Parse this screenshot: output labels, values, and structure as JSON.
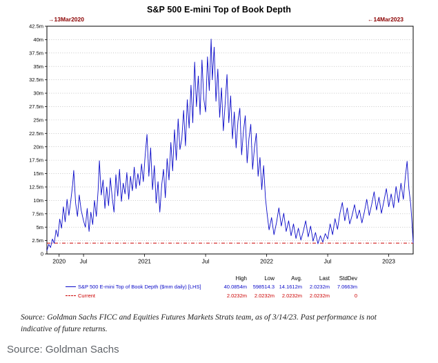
{
  "title": "S&P 500 E-mini Top of Book Depth",
  "annotations": {
    "start_arrow": "→",
    "start_date": "13Mar2020",
    "end_arrow": "←",
    "end_date": "14Mar2023"
  },
  "colors": {
    "series": "#0a0ac8",
    "current": "#cc0000",
    "annotation": "#8b0000"
  },
  "chart_data": {
    "type": "line",
    "title": "S&P 500 E-mini Top of Book Depth",
    "x_range": [
      2020.2,
      2023.2
    ],
    "ylim": [
      0,
      42.5
    ],
    "y_tick_step": 2.5,
    "y_tick_labels": [
      "0",
      "2.5m",
      "5m",
      "7.5m",
      "10m",
      "12.5m",
      "15m",
      "17.5m",
      "20m",
      "22.5m",
      "25m",
      "27.5m",
      "30m",
      "32.5m",
      "35m",
      "37.5m",
      "40m",
      "42.5m"
    ],
    "x_ticks": [
      {
        "v": 2020.3,
        "label": "2020"
      },
      {
        "v": 2020.5,
        "label": "Jul"
      },
      {
        "v": 2021.0,
        "label": "2021"
      },
      {
        "v": 2021.5,
        "label": "Jul"
      },
      {
        "v": 2022.0,
        "label": "2022"
      },
      {
        "v": 2022.5,
        "label": "Jul"
      },
      {
        "v": 2023.0,
        "label": "2023"
      }
    ],
    "grid": "horizontal-dotted",
    "legend_position": "bottom",
    "series": [
      {
        "name": "S&P 500 E-mini Top of Book Depth ($mm daily) [LHS]",
        "color": "#0a0ac8",
        "style": "solid",
        "x": [
          2020.2,
          2020.215,
          2020.23,
          2020.245,
          2020.26,
          2020.275,
          2020.29,
          2020.305,
          2020.32,
          2020.335,
          2020.35,
          2020.365,
          2020.38,
          2020.395,
          2020.41,
          2020.42,
          2020.435,
          2020.45,
          2020.465,
          2020.48,
          2020.5,
          2020.515,
          2020.53,
          2020.545,
          2020.56,
          2020.575,
          2020.59,
          2020.605,
          2020.62,
          2020.63,
          2020.645,
          2020.66,
          2020.675,
          2020.69,
          2020.705,
          2020.72,
          2020.735,
          2020.75,
          2020.765,
          2020.78,
          2020.795,
          2020.81,
          2020.825,
          2020.84,
          2020.855,
          2020.87,
          2020.885,
          2020.9,
          2020.915,
          2020.93,
          2020.945,
          2020.96,
          2020.975,
          2020.99,
          2021.005,
          2021.02,
          2021.035,
          2021.05,
          2021.065,
          2021.08,
          2021.095,
          2021.11,
          2021.125,
          2021.14,
          2021.155,
          2021.17,
          2021.185,
          2021.2,
          2021.215,
          2021.23,
          2021.245,
          2021.26,
          2021.275,
          2021.29,
          2021.305,
          2021.32,
          2021.335,
          2021.35,
          2021.365,
          2021.38,
          2021.395,
          2021.41,
          2021.425,
          2021.44,
          2021.455,
          2021.47,
          2021.485,
          2021.5,
          2021.515,
          2021.53,
          2021.545,
          2021.555,
          2021.57,
          2021.585,
          2021.6,
          2021.615,
          2021.63,
          2021.645,
          2021.66,
          2021.675,
          2021.69,
          2021.705,
          2021.72,
          2021.735,
          2021.75,
          2021.765,
          2021.78,
          2021.795,
          2021.81,
          2021.825,
          2021.84,
          2021.855,
          2021.87,
          2021.885,
          2021.9,
          2021.915,
          2021.93,
          2021.945,
          2021.96,
          2021.975,
          2021.99,
          2022.005,
          2022.02,
          2022.04,
          2022.06,
          2022.08,
          2022.1,
          2022.12,
          2022.14,
          2022.16,
          2022.18,
          2022.2,
          2022.22,
          2022.24,
          2022.26,
          2022.28,
          2022.3,
          2022.32,
          2022.34,
          2022.36,
          2022.38,
          2022.4,
          2022.42,
          2022.44,
          2022.46,
          2022.48,
          2022.5,
          2022.52,
          2022.54,
          2022.56,
          2022.58,
          2022.6,
          2022.62,
          2022.64,
          2022.66,
          2022.68,
          2022.7,
          2022.72,
          2022.74,
          2022.76,
          2022.78,
          2022.8,
          2022.82,
          2022.84,
          2022.86,
          2022.88,
          2022.9,
          2022.92,
          2022.94,
          2022.96,
          2022.98,
          2023.0,
          2023.02,
          2023.04,
          2023.06,
          2023.08,
          2023.1,
          2023.12,
          2023.135,
          2023.15,
          2023.165,
          2023.18,
          2023.19,
          2023.2
        ],
        "y": [
          0.6,
          1.8,
          1.2,
          2.8,
          2.0,
          4.5,
          3.2,
          6.5,
          4.8,
          8.8,
          6.0,
          10.2,
          7.2,
          9.8,
          12.8,
          15.6,
          9.5,
          7.0,
          11.0,
          8.2,
          6.2,
          5.0,
          8.5,
          4.2,
          7.8,
          5.5,
          10.0,
          7.0,
          12.0,
          17.4,
          11.0,
          13.8,
          8.5,
          12.5,
          9.0,
          14.2,
          10.5,
          7.8,
          14.8,
          10.8,
          15.8,
          9.8,
          13.2,
          11.2,
          15.2,
          10.2,
          14.5,
          11.8,
          16.2,
          12.2,
          15.0,
          12.8,
          16.8,
          13.5,
          18.5,
          22.3,
          14.5,
          19.8,
          12.0,
          16.5,
          9.5,
          13.5,
          7.8,
          12.8,
          15.8,
          10.5,
          17.8,
          13.8,
          20.8,
          15.5,
          23.2,
          17.5,
          25.2,
          19.5,
          21.5,
          26.8,
          20.2,
          28.8,
          23.5,
          31.5,
          24.5,
          35.8,
          27.5,
          33.2,
          26.0,
          36.2,
          29.0,
          26.5,
          36.8,
          30.5,
          40.1,
          32.5,
          38.6,
          28.5,
          34.5,
          25.5,
          31.0,
          23.0,
          28.0,
          33.5,
          24.5,
          29.5,
          21.5,
          26.5,
          19.8,
          24.8,
          27.2,
          18.5,
          23.0,
          25.8,
          17.0,
          21.5,
          24.2,
          15.8,
          19.8,
          22.5,
          14.5,
          18.0,
          12.0,
          16.5,
          10.5,
          7.2,
          4.5,
          6.8,
          3.6,
          5.8,
          8.6,
          5.2,
          7.6,
          4.2,
          6.2,
          3.4,
          5.6,
          2.9,
          4.8,
          2.6,
          4.2,
          6.2,
          3.2,
          5.2,
          2.4,
          4.0,
          1.9,
          3.4,
          2.2,
          3.8,
          2.8,
          5.6,
          3.6,
          6.6,
          4.6,
          7.6,
          9.6,
          6.2,
          8.6,
          5.6,
          7.2,
          9.2,
          6.6,
          8.2,
          5.8,
          7.8,
          10.2,
          7.2,
          9.2,
          11.6,
          8.2,
          10.6,
          7.6,
          9.8,
          12.2,
          8.8,
          11.2,
          8.6,
          12.6,
          9.6,
          13.2,
          10.2,
          14.2,
          17.3,
          12.2,
          9.2,
          6.0,
          2.0232
        ]
      },
      {
        "name": "Current",
        "color": "#cc0000",
        "style": "dash-dot",
        "value": 2.0232
      }
    ],
    "stats": {
      "columns": [
        "High",
        "Low",
        "Avg.",
        "Last",
        "StdDev"
      ],
      "rows": [
        {
          "name": "S&P 500 E-mini Top of Book Depth ($mm daily) [LHS]",
          "values": [
            "40.0854m",
            "598514.3",
            "14.1612m",
            "2.0232m",
            "7.0663m"
          ]
        },
        {
          "name": "Current",
          "values": [
            "2.0232m",
            "2.0232m",
            "2.0232m",
            "2.0232m",
            "0"
          ]
        }
      ]
    }
  },
  "source_note": "Source: Goldman Sachs FICC and Equities Futures Markets Strats team, as of 3/14/23. Past performance is not indicative of future returns.",
  "footer_source": "Source: Goldman Sachs"
}
